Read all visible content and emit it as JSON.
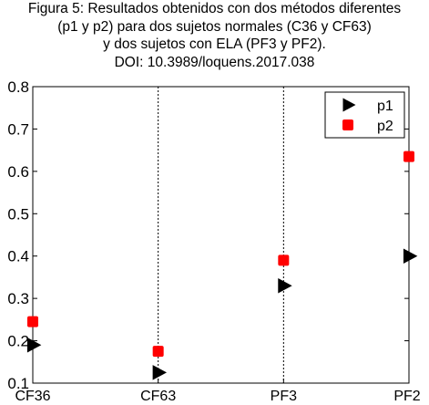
{
  "title_lines": [
    "Figura 5: Resultados obtenidos con dos métodos diferentes",
    "(p1 y p2) para dos sujetos normales (C36 y CF63)",
    "y dos sujetos con ELA (PF3 y PF2).",
    "DOI: 10.3989/loquens.2017.038"
  ],
  "chart_data": {
    "type": "scatter",
    "title": "Figura 5: Resultados obtenidos con dos métodos diferentes (p1 y p2) para dos sujetos normales (C36 y CF63) y dos sujetos con ELA (PF3 y PF2). DOI: 10.3989/loquens.2017.038",
    "categories": [
      "CF36",
      "CF63",
      "PF3",
      "PF2"
    ],
    "series": [
      {
        "name": "p1",
        "marker": "triangle-right",
        "color": "#000000",
        "values": [
          0.19,
          0.125,
          0.33,
          0.4
        ]
      },
      {
        "name": "p2",
        "marker": "square",
        "color": "#ff0000",
        "values": [
          0.245,
          0.175,
          0.39,
          0.635
        ]
      }
    ],
    "ylim": [
      0.1,
      0.8
    ],
    "yticks": [
      "0.1",
      "0.2",
      "0.3",
      "0.4",
      "0.5",
      "0.6",
      "0.7",
      "0.8"
    ],
    "xlabel": "",
    "ylabel": "",
    "grid": "vertical-dashed",
    "legend_position": "top-right"
  }
}
